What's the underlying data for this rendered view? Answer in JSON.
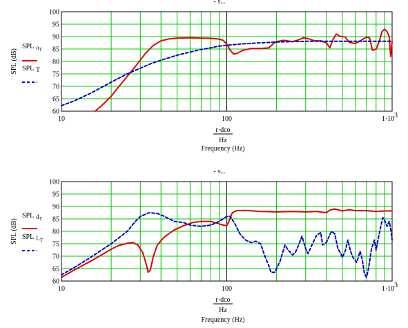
{
  "chart_data": [
    {
      "type": "line",
      "x_scale": "log",
      "xlim": [
        10,
        1000
      ],
      "ylim": [
        60,
        100
      ],
      "grid": true,
      "x_tick_labels": [
        "10",
        "100",
        "1·10"
      ],
      "x_tick_exp": "3",
      "y_ticks": [
        60,
        65,
        70,
        75,
        80,
        85,
        90,
        95,
        100
      ],
      "ylabel": "SPL (dB)",
      "xlabel_lines": [
        "r·dco",
        "Hz",
        "Frequency (Hz)"
      ],
      "title": "- s...",
      "legend": "left",
      "colors": {
        "solid": "#e00000",
        "dashed": "#0000c8",
        "grid": "#00c800"
      },
      "series": [
        {
          "name": "SPL",
          "sub": "o",
          "subsub": "T",
          "style": "solid",
          "points": [
            [
              16,
              60
            ],
            [
              18,
              63
            ],
            [
              20,
              66
            ],
            [
              22,
              69.5
            ],
            [
              25,
              74
            ],
            [
              28,
              78
            ],
            [
              32,
              83
            ],
            [
              36,
              86.5
            ],
            [
              40,
              88.3
            ],
            [
              45,
              89.1
            ],
            [
              50,
              89.4
            ],
            [
              60,
              89.5
            ],
            [
              70,
              89.4
            ],
            [
              80,
              89.3
            ],
            [
              90,
              89
            ],
            [
              95,
              88.5
            ],
            [
              100,
              87
            ],
            [
              105,
              84.5
            ],
            [
              110,
              83
            ],
            [
              115,
              83.2
            ],
            [
              125,
              84.5
            ],
            [
              140,
              85.2
            ],
            [
              160,
              85.2
            ],
            [
              180,
              85.5
            ],
            [
              190,
              87
            ],
            [
              200,
              88
            ],
            [
              220,
              88.5
            ],
            [
              250,
              88
            ],
            [
              270,
              88.6
            ],
            [
              290,
              89.5
            ],
            [
              310,
              89.2
            ],
            [
              340,
              88.3
            ],
            [
              370,
              88.3
            ],
            [
              400,
              87.5
            ],
            [
              420,
              85.5
            ],
            [
              440,
              89
            ],
            [
              460,
              91
            ],
            [
              480,
              90.2
            ],
            [
              520,
              89.8
            ],
            [
              550,
              87.7
            ],
            [
              600,
              87.2
            ],
            [
              650,
              88.5
            ],
            [
              700,
              89.8
            ],
            [
              730,
              89.5
            ],
            [
              760,
              84.5
            ],
            [
              800,
              85
            ],
            [
              830,
              87.5
            ],
            [
              870,
              92
            ],
            [
              900,
              93
            ],
            [
              930,
              92
            ],
            [
              960,
              90
            ],
            [
              980,
              82
            ],
            [
              1000,
              88
            ]
          ]
        },
        {
          "name": "SPL",
          "sub": "T",
          "subsub": "",
          "style": "dashed",
          "points": [
            [
              10,
              62.2
            ],
            [
              12,
              64.2
            ],
            [
              15,
              67.2
            ],
            [
              18,
              70
            ],
            [
              20,
              71.7
            ],
            [
              25,
              75
            ],
            [
              30,
              77.3
            ],
            [
              35,
              79.2
            ],
            [
              40,
              80.5
            ],
            [
              50,
              82.5
            ],
            [
              60,
              83.8
            ],
            [
              70,
              84.8
            ],
            [
              80,
              85.5
            ],
            [
              90,
              86.2
            ],
            [
              100,
              86.5
            ],
            [
              120,
              87
            ],
            [
              150,
              87.4
            ],
            [
              200,
              87.8
            ],
            [
              250,
              88
            ],
            [
              300,
              88.1
            ],
            [
              400,
              88.1
            ],
            [
              500,
              88.1
            ],
            [
              600,
              88.1
            ],
            [
              700,
              88.1
            ],
            [
              800,
              88.1
            ],
            [
              1000,
              88.1
            ]
          ]
        }
      ]
    },
    {
      "type": "line",
      "x_scale": "log",
      "xlim": [
        10,
        1000
      ],
      "ylim": [
        60,
        100
      ],
      "grid": true,
      "x_tick_labels": [
        "10",
        "100",
        "1·10"
      ],
      "x_tick_exp": "3",
      "y_ticks": [
        60,
        65,
        70,
        75,
        80,
        85,
        90,
        95,
        100
      ],
      "ylabel": "SPL (dB)",
      "xlabel_lines": [
        "r·dco",
        "Hz",
        "Frequency (Hz)"
      ],
      "title": "- s...",
      "legend": "left",
      "colors": {
        "solid": "#e00000",
        "dashed": "#0000c8",
        "grid": "#00c800"
      },
      "series": [
        {
          "name": "SPL",
          "sub": "d",
          "subsub": "T",
          "style": "solid",
          "points": [
            [
              10,
              61.5
            ],
            [
              12,
              64.5
            ],
            [
              15,
              68
            ],
            [
              18,
              71
            ],
            [
              20,
              72.8
            ],
            [
              22,
              74.2
            ],
            [
              25,
              75.2
            ],
            [
              27,
              75.5
            ],
            [
              29,
              74.5
            ],
            [
              31,
              71.5
            ],
            [
              32.5,
              67
            ],
            [
              33.5,
              63.5
            ],
            [
              34.5,
              64.5
            ],
            [
              36,
              70
            ],
            [
              38,
              74.5
            ],
            [
              42,
              77.8
            ],
            [
              48,
              80.5
            ],
            [
              55,
              82.3
            ],
            [
              62,
              83.5
            ],
            [
              70,
              84
            ],
            [
              80,
              84
            ],
            [
              90,
              83
            ],
            [
              95,
              82.5
            ],
            [
              100,
              82.3
            ],
            [
              103,
              84
            ],
            [
              108,
              87.5
            ],
            [
              115,
              88.3
            ],
            [
              130,
              88.4
            ],
            [
              160,
              88
            ],
            [
              200,
              87.8
            ],
            [
              250,
              88
            ],
            [
              300,
              87.8
            ],
            [
              350,
              88
            ],
            [
              400,
              87.5
            ],
            [
              420,
              88.5
            ],
            [
              450,
              89
            ],
            [
              500,
              88.2
            ],
            [
              550,
              88.7
            ],
            [
              600,
              88.3
            ],
            [
              700,
              88.3
            ],
            [
              800,
              88
            ],
            [
              900,
              88.2
            ],
            [
              1000,
              88.2
            ]
          ]
        },
        {
          "name": "SPL",
          "sub": "L",
          "subsub": "T",
          "style": "dashed",
          "points": [
            [
              10,
              62.5
            ],
            [
              12,
              65.5
            ],
            [
              15,
              69.5
            ],
            [
              18,
              73
            ],
            [
              20,
              75
            ],
            [
              25,
              80
            ],
            [
              28,
              84
            ],
            [
              30,
              86
            ],
            [
              34,
              87.5
            ],
            [
              38,
              87.2
            ],
            [
              42,
              86
            ],
            [
              48,
              84
            ],
            [
              55,
              83.5
            ],
            [
              60,
              82.5
            ],
            [
              70,
              82
            ],
            [
              80,
              82.5
            ],
            [
              90,
              84
            ],
            [
              100,
              86
            ],
            [
              105,
              86
            ],
            [
              112,
              83
            ],
            [
              120,
              79
            ],
            [
              130,
              76.5
            ],
            [
              140,
              75.5
            ],
            [
              150,
              76
            ],
            [
              160,
              75
            ],
            [
              170,
              70
            ],
            [
              180,
              66
            ],
            [
              185,
              63.5
            ],
            [
              195,
              63.5
            ],
            [
              210,
              68
            ],
            [
              225,
              74.5
            ],
            [
              235,
              72.5
            ],
            [
              250,
              70.5
            ],
            [
              260,
              71.5
            ],
            [
              270,
              74
            ],
            [
              285,
              78
            ],
            [
              300,
              73
            ],
            [
              310,
              71
            ],
            [
              330,
              75
            ],
            [
              350,
              78.5
            ],
            [
              370,
              79.5
            ],
            [
              380,
              74.5
            ],
            [
              400,
              75.5
            ],
            [
              430,
              80
            ],
            [
              450,
              79
            ],
            [
              470,
              73
            ],
            [
              490,
              71
            ],
            [
              500,
              69.5
            ],
            [
              520,
              72
            ],
            [
              540,
              76.5
            ],
            [
              560,
              72
            ],
            [
              580,
              69.5
            ],
            [
              610,
              67.5
            ],
            [
              640,
              72
            ],
            [
              660,
              68.5
            ],
            [
              680,
              63
            ],
            [
              700,
              61.5
            ],
            [
              720,
              65
            ],
            [
              750,
              73
            ],
            [
              780,
              76.5
            ],
            [
              800,
              72.5
            ],
            [
              830,
              78
            ],
            [
              860,
              83
            ],
            [
              880,
              85.5
            ],
            [
              900,
              84.5
            ],
            [
              930,
              82
            ],
            [
              960,
              84
            ],
            [
              980,
              81
            ],
            [
              1000,
              76.5
            ]
          ]
        }
      ]
    }
  ]
}
